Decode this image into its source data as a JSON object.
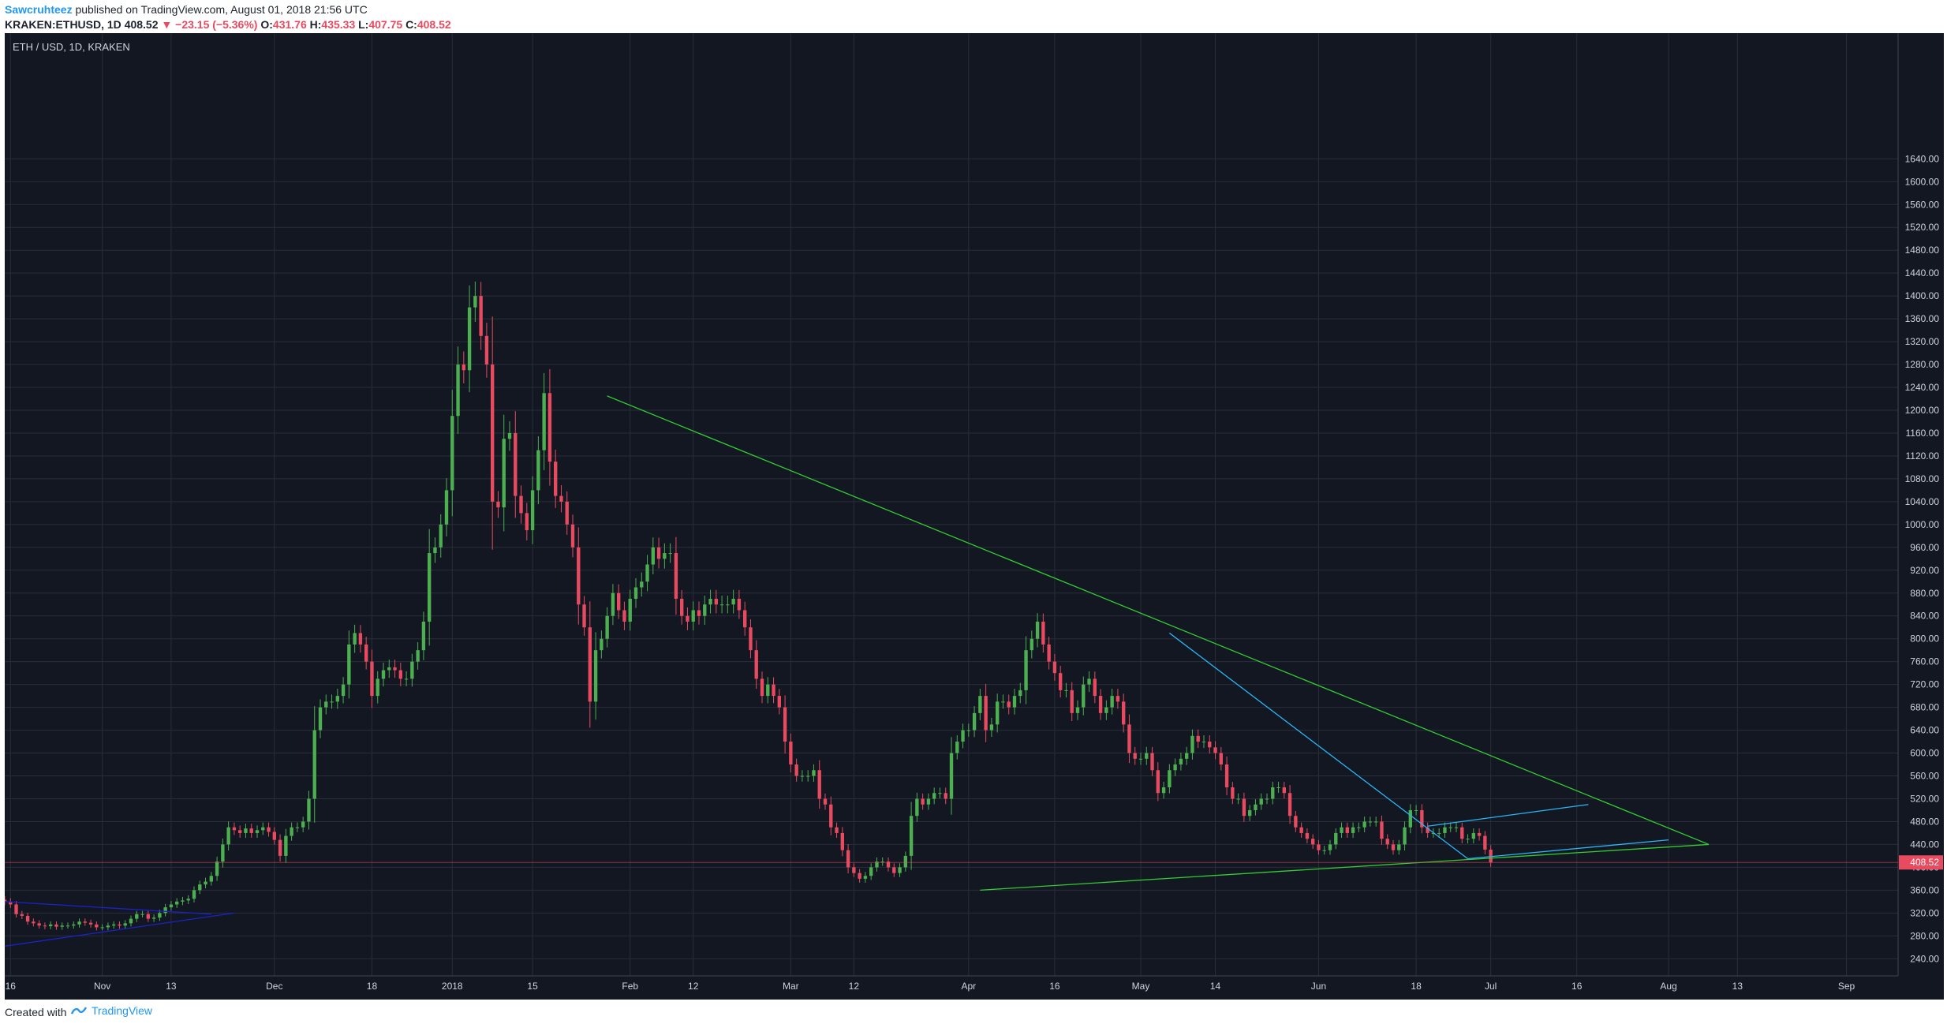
{
  "header": {
    "author": "Sawcruhteez",
    "published": " published on TradingView.com, August 01, 2018 21:56 UTC",
    "symbol": "KRAKEN:ETHUSD, 1D",
    "last": "408.52",
    "change": "−23.15 (−5.36%)",
    "o_label": "O:",
    "o": "431.76",
    "h_label": "H:",
    "h": "435.33",
    "l_label": "L:",
    "l": "407.75",
    "c_label": "C:",
    "c": "408.52"
  },
  "footer": {
    "created_with": "Created with",
    "brand": "TradingView"
  },
  "colors": {
    "background": "#131722",
    "grid": "#2a2e39",
    "up": "#4caf50",
    "down": "#e84a5f",
    "trend_green": "#33cc33",
    "channel_cyan": "#29b6f6",
    "channel_blue": "#1a23c9",
    "price_line": "#e84a5f"
  },
  "chart_data": {
    "type": "candlestick",
    "title": "ETH / USD, 1D, KRAKEN",
    "ylim": [
      210,
      1860
    ],
    "xlim": [
      "2017-10-15",
      "2018-09-10"
    ],
    "y_ticks": [
      "240.00",
      "280.00",
      "320.00",
      "360.00",
      "400.00",
      "440.00",
      "480.00",
      "520.00",
      "560.00",
      "600.00",
      "640.00",
      "680.00",
      "720.00",
      "760.00",
      "800.00",
      "840.00",
      "880.00",
      "920.00",
      "960.00",
      "1000.00",
      "1040.00",
      "1080.00",
      "1120.00",
      "1160.00",
      "1200.00",
      "1240.00",
      "1280.00",
      "1320.00",
      "1360.00",
      "1400.00",
      "1440.00",
      "1480.00",
      "1520.00",
      "1560.00",
      "1600.00",
      "1640.00"
    ],
    "x_ticks": [
      {
        "date": "2017-10-16",
        "label": "16"
      },
      {
        "date": "2017-11-01",
        "label": "Nov"
      },
      {
        "date": "2017-11-13",
        "label": "13"
      },
      {
        "date": "2017-12-01",
        "label": "Dec"
      },
      {
        "date": "2017-12-18",
        "label": "18"
      },
      {
        "date": "2018-01-01",
        "label": "2018"
      },
      {
        "date": "2018-01-15",
        "label": "15"
      },
      {
        "date": "2018-02-01",
        "label": "Feb"
      },
      {
        "date": "2018-02-12",
        "label": "12"
      },
      {
        "date": "2018-03-01",
        "label": "Mar"
      },
      {
        "date": "2018-03-12",
        "label": "12"
      },
      {
        "date": "2018-04-01",
        "label": "Apr"
      },
      {
        "date": "2018-04-16",
        "label": "16"
      },
      {
        "date": "2018-05-01",
        "label": "May"
      },
      {
        "date": "2018-05-14",
        "label": "14"
      },
      {
        "date": "2018-06-01",
        "label": "Jun"
      },
      {
        "date": "2018-06-18",
        "label": "18"
      },
      {
        "date": "2018-07-01",
        "label": "Jul"
      },
      {
        "date": "2018-07-16",
        "label": "16"
      },
      {
        "date": "2018-08-01",
        "label": "Aug"
      },
      {
        "date": "2018-08-13",
        "label": "13"
      },
      {
        "date": "2018-09-01",
        "label": "Sep"
      }
    ],
    "last_price": {
      "value": 408.52,
      "label": "408.52"
    },
    "series": [
      {
        "start": "2017-10-15",
        "close": [
          340,
          335,
          318,
          315,
          305,
          302,
          298,
          297,
          300,
          296,
          298,
          298,
          300,
          305,
          303,
          300,
          295,
          295,
          298,
          300,
          298,
          302,
          310,
          318,
          318,
          310,
          312,
          320,
          330,
          335,
          340,
          342,
          345,
          360,
          370,
          375,
          385,
          410,
          440,
          470,
          465,
          460,
          468,
          460,
          465,
          470,
          462,
          448,
          420,
          455,
          470,
          470,
          480,
          520,
          640,
          680,
          690,
          690,
          700,
          720,
          790,
          810,
          790,
          760,
          700,
          730,
          745,
          750,
          745,
          730,
          730,
          760,
          780,
          830,
          950,
          960,
          1000,
          1060,
          1190,
          1280,
          1270,
          1380,
          1400,
          1330,
          1280,
          1040,
          1030,
          1150,
          1160,
          1050,
          1020,
          990,
          1060,
          1130,
          1230,
          1110,
          1050,
          1040,
          1000,
          960,
          860,
          820,
          690,
          780,
          800,
          840,
          880,
          850,
          830,
          870,
          890,
          900,
          930,
          960,
          940,
          950,
          950,
          870,
          840,
          830,
          850,
          840,
          860,
          870,
          860,
          860,
          860,
          870,
          850,
          820,
          780,
          730,
          700,
          720,
          700,
          680,
          620,
          580,
          560,
          560,
          560,
          570,
          520,
          510,
          470,
          460,
          430,
          400,
          390,
          380,
          385,
          400,
          410,
          410,
          400,
          390,
          400,
          420,
          490,
          520,
          510,
          520,
          530,
          530,
          520,
          600,
          620,
          640,
          640,
          670,
          700,
          640,
          650,
          690,
          690,
          680,
          700,
          710,
          780,
          800,
          830,
          790,
          760,
          740,
          710,
          710,
          670,
          680,
          720,
          730,
          700,
          670,
          680,
          700,
          690,
          650,
          600,
          590,
          590,
          600,
          570,
          530,
          540,
          570,
          580,
          590,
          600,
          630,
          620,
          620,
          610,
          600,
          580,
          540,
          520,
          520,
          490,
          500,
          510,
          520,
          520,
          540,
          540,
          530,
          490,
          470,
          460,
          450,
          440,
          430,
          430,
          440,
          460,
          470,
          460,
          470,
          470,
          480,
          480,
          480,
          450,
          440,
          430,
          440,
          470,
          500,
          500,
          470,
          460,
          460,
          460,
          470,
          470,
          470,
          450,
          450,
          460,
          455,
          431,
          408.52
        ]
      }
    ],
    "trendlines": [
      {
        "color": "green",
        "points": [
          [
            "2018-01-28",
            1225
          ],
          [
            "2018-08-08",
            440
          ]
        ]
      },
      {
        "color": "green",
        "points": [
          [
            "2018-04-03",
            360
          ],
          [
            "2018-08-08",
            440
          ]
        ]
      },
      {
        "color": "cyan",
        "points": [
          [
            "2018-05-06",
            810
          ],
          [
            "2018-06-27",
            415
          ]
        ]
      },
      {
        "color": "cyan",
        "points": [
          [
            "2018-06-20",
            472
          ],
          [
            "2018-07-18",
            510
          ]
        ]
      },
      {
        "color": "cyan",
        "points": [
          [
            "2018-06-27",
            415
          ],
          [
            "2018-08-01",
            448
          ]
        ]
      },
      {
        "color": "blue",
        "points": [
          [
            "2017-10-15",
            340
          ],
          [
            "2017-11-20",
            318
          ]
        ]
      },
      {
        "color": "blue",
        "points": [
          [
            "2017-10-15",
            262
          ],
          [
            "2017-11-24",
            320
          ]
        ]
      }
    ]
  }
}
